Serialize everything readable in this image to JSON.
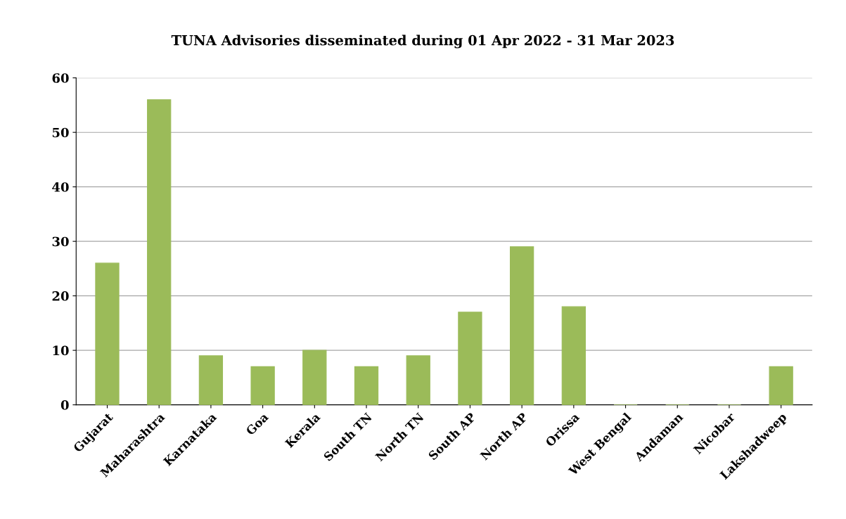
{
  "chart_data": {
    "type": "bar",
    "title": "TUNA Advisories disseminated during 01 Apr 2022 - 31 Mar 2023",
    "categories": [
      "Gujarat",
      "Maharashtra",
      "Karnataka",
      "Goa",
      "Kerala",
      "South TN",
      "North TN",
      "South AP",
      "North AP",
      "Orissa",
      "West Bengal",
      "Andaman",
      "Nicobar",
      "Lakshadweep"
    ],
    "values": [
      26,
      56,
      9,
      7,
      10,
      7,
      9,
      17,
      29,
      18,
      0,
      0,
      0,
      7
    ],
    "color": "#9bbb59",
    "ylim": [
      0,
      60
    ],
    "yticks": [
      0,
      10,
      20,
      30,
      40,
      50,
      60
    ],
    "grid": "y",
    "legend": false
  }
}
